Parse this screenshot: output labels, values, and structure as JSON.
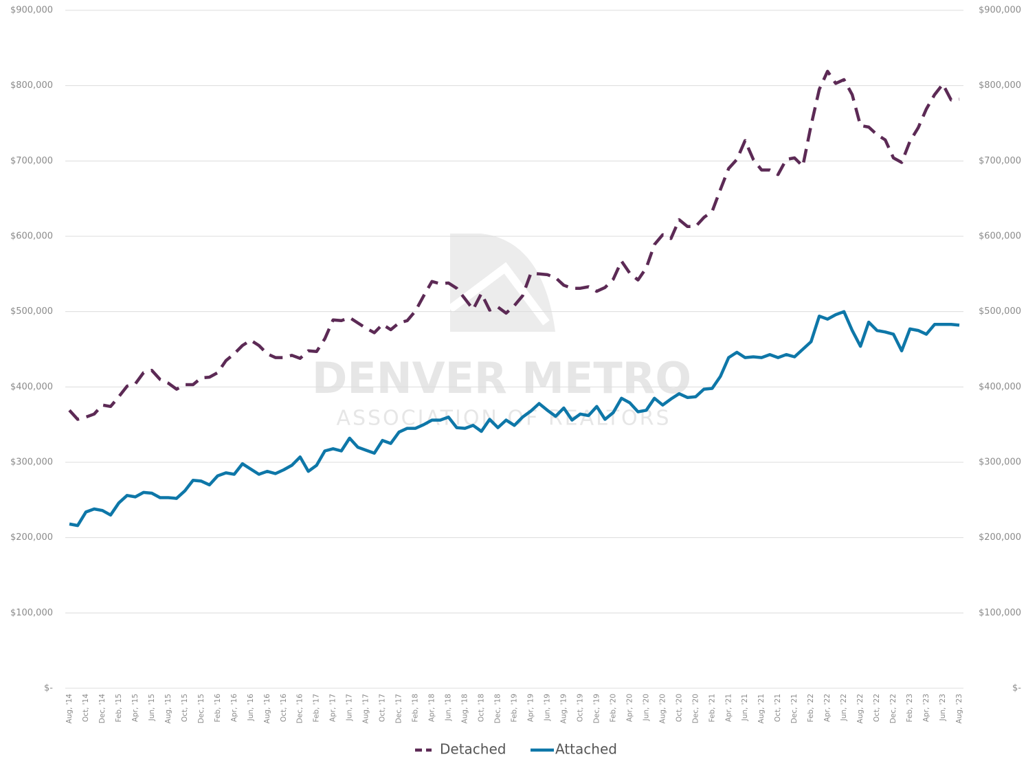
{
  "chart_data": {
    "type": "line",
    "watermark": {
      "title": "DENVER METRO",
      "subtitle": "ASSOCIATION OF REALTORS"
    },
    "categories": [
      "Aug, '14",
      null,
      "Oct, '14",
      null,
      "Dec, '14",
      null,
      "Feb, '15",
      null,
      "Apr, '15",
      null,
      "Jun, '15",
      null,
      "Aug, '15",
      null,
      "Oct, '15",
      null,
      "Dec, '15",
      null,
      "Feb, '16",
      null,
      "Apr, '16",
      null,
      "Jun, '16",
      null,
      "Aug, '16",
      null,
      "Oct, '16",
      null,
      "Dec, '16",
      null,
      "Feb, '17",
      null,
      "Apr, '17",
      null,
      "Jun, '17",
      null,
      "Aug, '17",
      null,
      "Oct, '17",
      null,
      "Dec, '17",
      null,
      "Feb, '18",
      null,
      "Apr, '18",
      null,
      "Jun, '18",
      null,
      "Aug, '18",
      null,
      "Oct, '18",
      null,
      "Dec, '18",
      null,
      "Feb, '19",
      null,
      "Apr, '19",
      null,
      "Jun, '19",
      null,
      "Aug, '19",
      null,
      "Oct, '19",
      null,
      "Dec, '19",
      null,
      "Feb, '20",
      null,
      "Apr, '20",
      null,
      "Jun, '20",
      null,
      "Aug, '20",
      null,
      "Oct, '20",
      null,
      "Dec, '20",
      null,
      "Feb, '21",
      null,
      "Apr, '21",
      null,
      "Jun, '21",
      null,
      "Aug, '21",
      null,
      "Oct, '21",
      null,
      "Dec, '21",
      null,
      "Feb, '22",
      null,
      "Apr, '22",
      null,
      "Jun, '22",
      null,
      "Aug, '22",
      null,
      "Oct, '22",
      null,
      "Dec, '22",
      null,
      "Feb, '23",
      null,
      "Apr, '23",
      null,
      "Jun, '23",
      null,
      "Aug, '23"
    ],
    "series": [
      {
        "name": "Detached",
        "color": "#5c2a55",
        "dashed": true,
        "values": [
          369000,
          357000,
          360000,
          364000,
          376000,
          374000,
          387000,
          401000,
          404000,
          419000,
          422000,
          410000,
          405000,
          397000,
          403000,
          403000,
          412000,
          413000,
          419000,
          435000,
          444000,
          455000,
          462000,
          455000,
          444000,
          439000,
          439000,
          442000,
          438000,
          448000,
          447000,
          464000,
          489000,
          488000,
          492000,
          485000,
          478000,
          472000,
          483000,
          476000,
          485000,
          488000,
          501000,
          521000,
          540000,
          537000,
          538000,
          531000,
          517000,
          503000,
          524000,
          502000,
          506000,
          498000,
          508000,
          521000,
          551000,
          550000,
          549000,
          545000,
          535000,
          531000,
          531000,
          533000,
          527000,
          532000,
          543000,
          567000,
          551000,
          542000,
          558000,
          589000,
          602000,
          597000,
          622000,
          613000,
          613000,
          625000,
          633000,
          662000,
          690000,
          702000,
          727000,
          702000,
          688000,
          688000,
          682000,
          702000,
          704000,
          693000,
          747000,
          795000,
          819000,
          803000,
          808000,
          788000,
          747000,
          745000,
          735000,
          728000,
          704000,
          698000,
          726000,
          744000,
          769000,
          788000,
          802000,
          781000,
          782000
        ]
      },
      {
        "name": "Attached",
        "color": "#0e77a8",
        "dashed": false,
        "values": [
          218000,
          216000,
          234000,
          238000,
          236000,
          230000,
          246000,
          256000,
          254000,
          260000,
          259000,
          253000,
          253000,
          252000,
          262000,
          276000,
          275000,
          270000,
          282000,
          286000,
          284000,
          298000,
          291000,
          284000,
          288000,
          285000,
          290000,
          296000,
          307000,
          288000,
          296000,
          315000,
          318000,
          315000,
          332000,
          320000,
          316000,
          312000,
          329000,
          325000,
          340000,
          345000,
          345000,
          350000,
          356000,
          356000,
          360000,
          346000,
          345000,
          349000,
          341000,
          357000,
          346000,
          356000,
          349000,
          360000,
          368000,
          378000,
          369000,
          361000,
          372000,
          356000,
          364000,
          362000,
          374000,
          357000,
          366000,
          385000,
          379000,
          367000,
          369000,
          385000,
          376000,
          384000,
          391000,
          386000,
          387000,
          397000,
          398000,
          414000,
          439000,
          446000,
          439000,
          440000,
          439000,
          443000,
          439000,
          443000,
          440000,
          450000,
          460000,
          494000,
          490000,
          496000,
          500000,
          475000,
          454000,
          486000,
          475000,
          473000,
          470000,
          448000,
          477000,
          475000,
          470000,
          483000,
          483000,
          483000,
          482000
        ]
      }
    ],
    "ylim": [
      0,
      900000
    ],
    "yticks": [
      {
        "value": 0,
        "label": "$-"
      },
      {
        "value": 100000,
        "label": "$100,000"
      },
      {
        "value": 200000,
        "label": "$200,000"
      },
      {
        "value": 300000,
        "label": "$300,000"
      },
      {
        "value": 400000,
        "label": "$400,000"
      },
      {
        "value": 500000,
        "label": "$500,000"
      },
      {
        "value": 600000,
        "label": "$600,000"
      },
      {
        "value": 700000,
        "label": "$700,000"
      },
      {
        "value": 800000,
        "label": "$800,000"
      },
      {
        "value": 900000,
        "label": "$900,000"
      }
    ],
    "grid": true,
    "right_axis_labels": true,
    "legend": "bottom"
  }
}
